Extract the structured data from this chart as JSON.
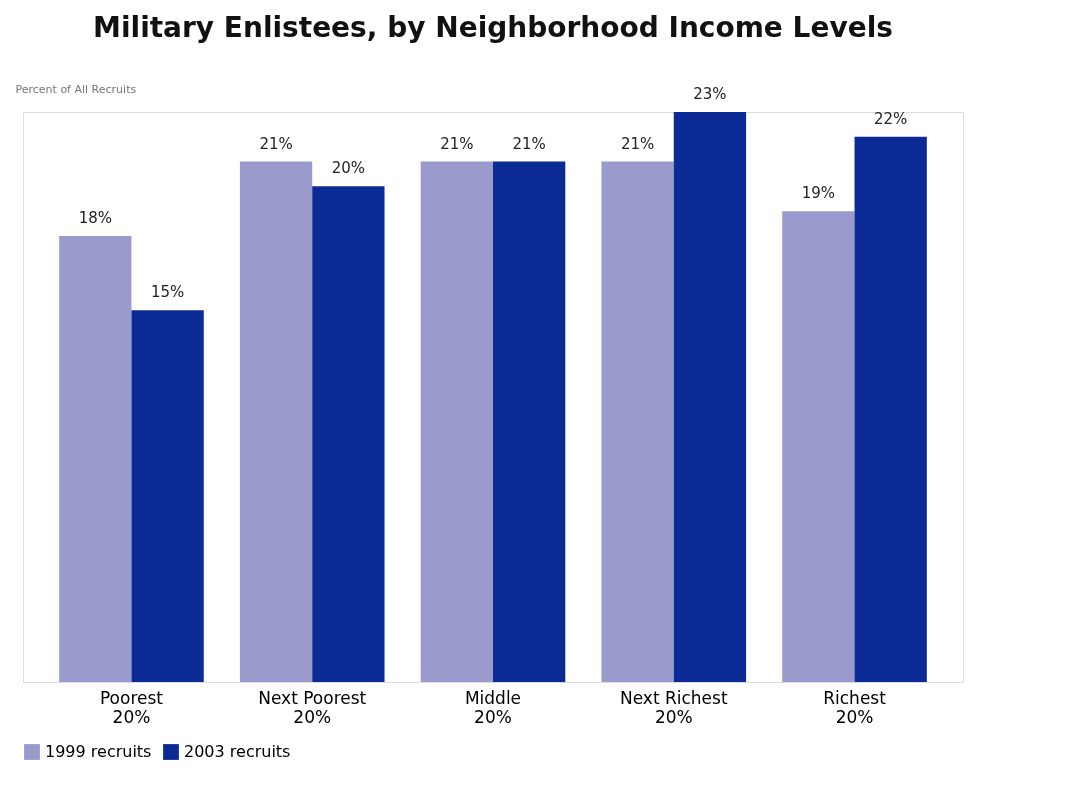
{
  "chart_data": {
    "type": "bar",
    "title": "Military Enlistees, by Neighborhood Income Levels",
    "ylabel": "Percent of All Recruits",
    "categories": [
      "Poorest 20%",
      "Next Poorest 20%",
      "Middle 20%",
      "Next Richest 20%",
      "Richest 20%"
    ],
    "series": [
      {
        "name": "1999 recruits",
        "color": "#9a9acc",
        "values": [
          18,
          21,
          21,
          21,
          19
        ],
        "value_labels": [
          "18%",
          "21%",
          "21%",
          "21%",
          "19%"
        ]
      },
      {
        "name": "2003 recruits",
        "color": "#0c2a96",
        "values": [
          15,
          20,
          21,
          23,
          22
        ],
        "value_labels": [
          "15%",
          "20%",
          "21%",
          "23%",
          "22%"
        ]
      }
    ],
    "legend": "bottom",
    "grid": false
  }
}
